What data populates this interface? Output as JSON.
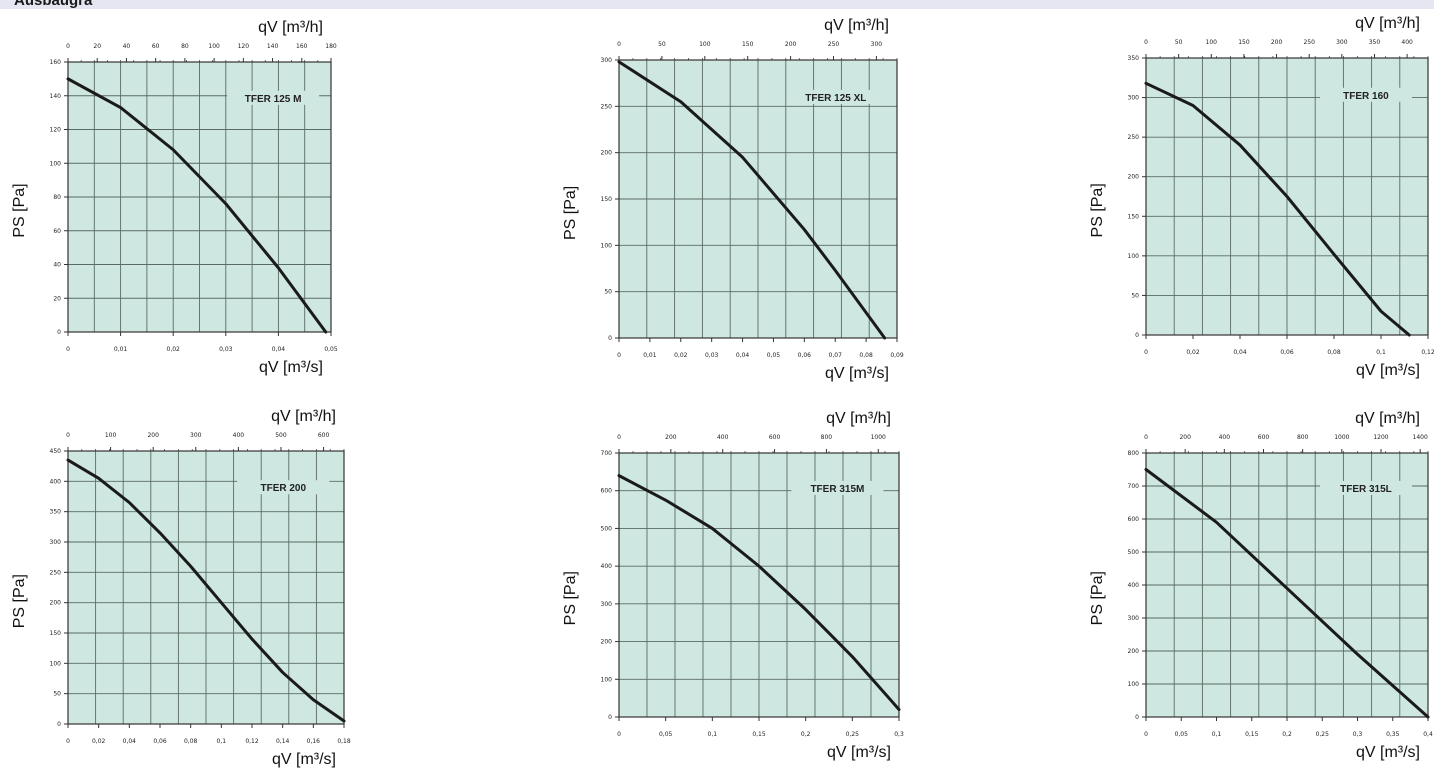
{
  "header": {
    "title": "Ausbaugra"
  },
  "chart_data": [
    {
      "type": "line",
      "title": "TFER 125 M",
      "xlabel": "qV [m³/s]",
      "x2label": "qV [m³/h]",
      "ylabel": "PS [Pa]",
      "xlim": [
        0,
        0.05
      ],
      "x2lim": [
        0,
        180
      ],
      "ylim": [
        0,
        160
      ],
      "xticks": [
        "0",
        "0,01",
        "0,02",
        "0,03",
        "0,04",
        "0,05"
      ],
      "x2ticks": [
        "0",
        "20",
        "40",
        "60",
        "80",
        "100",
        "120",
        "140",
        "160",
        "180"
      ],
      "yticks": [
        "0",
        "20",
        "40",
        "60",
        "80",
        "100",
        "120",
        "140",
        "160"
      ],
      "grid": true,
      "series": [
        {
          "x": [
            0,
            0.01,
            0.02,
            0.03,
            0.04,
            0.049
          ],
          "y": [
            150,
            133,
            108,
            76,
            38,
            0
          ]
        }
      ]
    },
    {
      "type": "line",
      "title": "TFER 125 XL",
      "xlabel": "qV [m³/s]",
      "x2label": "qV [m³/h]",
      "ylabel": "PS [Pa]",
      "xlim": [
        0,
        0.09
      ],
      "x2lim": [
        0,
        324
      ],
      "ylim": [
        0,
        300
      ],
      "xticks": [
        "0",
        "0,01",
        "0,02",
        "0,03",
        "0,04",
        "0,05",
        "0,06",
        "0,07",
        "0,08",
        "0,09"
      ],
      "x2ticks": [
        "0",
        "50",
        "100",
        "150",
        "200",
        "250",
        "300"
      ],
      "yticks": [
        "0",
        "50",
        "100",
        "150",
        "200",
        "250",
        "300"
      ],
      "grid": true,
      "series": [
        {
          "x": [
            0,
            0.02,
            0.04,
            0.06,
            0.07,
            0.086
          ],
          "y": [
            298,
            255,
            195,
            117,
            73,
            0
          ]
        }
      ]
    },
    {
      "type": "line",
      "title": "TFER 160",
      "xlabel": "qV [m³/s]",
      "x2label": "qV [m³/h]",
      "ylabel": "PS [Pa]",
      "xlim": [
        0,
        0.12
      ],
      "x2lim": [
        0,
        432
      ],
      "ylim": [
        0,
        350
      ],
      "xticks": [
        "0",
        "0,02",
        "0,04",
        "0,06",
        "0,08",
        "0,1",
        "0,12"
      ],
      "x2ticks": [
        "0",
        "50",
        "100",
        "150",
        "200",
        "250",
        "300",
        "350",
        "400"
      ],
      "yticks": [
        "0",
        "50",
        "100",
        "150",
        "200",
        "250",
        "300",
        "350"
      ],
      "grid": true,
      "series": [
        {
          "x": [
            0,
            0.02,
            0.04,
            0.06,
            0.08,
            0.1,
            0.112
          ],
          "y": [
            318,
            290,
            240,
            175,
            102,
            30,
            0
          ]
        }
      ]
    },
    {
      "type": "line",
      "title": "TFER 200",
      "xlabel": "qV [m³/s]",
      "x2label": "qV [m³/h]",
      "ylabel": "PS [Pa]",
      "xlim": [
        0,
        0.18
      ],
      "x2lim": [
        0,
        648
      ],
      "ylim": [
        0,
        450
      ],
      "xticks": [
        "0",
        "0,02",
        "0,04",
        "0,06",
        "0,08",
        "0,1",
        "0,12",
        "0,14",
        "0,16",
        "0,18"
      ],
      "x2ticks": [
        "0",
        "100",
        "200",
        "300",
        "400",
        "500",
        "600"
      ],
      "yticks": [
        "0",
        "50",
        "100",
        "150",
        "200",
        "250",
        "300",
        "350",
        "400",
        "450"
      ],
      "grid": true,
      "series": [
        {
          "x": [
            0,
            0.02,
            0.04,
            0.06,
            0.08,
            0.1,
            0.12,
            0.14,
            0.16,
            0.18
          ],
          "y": [
            435,
            405,
            365,
            315,
            260,
            200,
            140,
            85,
            40,
            5
          ]
        }
      ]
    },
    {
      "type": "line",
      "title": "TFER 315M",
      "xlabel": "qV [m³/s]",
      "x2label": "qV [m³/h]",
      "ylabel": "PS [Pa]",
      "xlim": [
        0,
        0.3
      ],
      "x2lim": [
        0,
        1080
      ],
      "ylim": [
        0,
        700
      ],
      "xticks": [
        "0",
        "0,05",
        "0,1",
        "0,15",
        "0,2",
        "0,25",
        "0,3"
      ],
      "x2ticks": [
        "0",
        "200",
        "400",
        "600",
        "800",
        "1000"
      ],
      "yticks": [
        "0",
        "100",
        "200",
        "300",
        "400",
        "500",
        "600",
        "700"
      ],
      "grid": true,
      "series": [
        {
          "x": [
            0,
            0.05,
            0.1,
            0.15,
            0.2,
            0.25,
            0.3
          ],
          "y": [
            640,
            575,
            500,
            400,
            285,
            160,
            20
          ]
        }
      ]
    },
    {
      "type": "line",
      "title": "TFER 315L",
      "xlabel": "qV [m³/s]",
      "x2label": "qV [m³/h]",
      "ylabel": "PS [Pa]",
      "xlim": [
        0,
        0.4
      ],
      "x2lim": [
        0,
        1440
      ],
      "ylim": [
        0,
        800
      ],
      "xticks": [
        "0",
        "0,05",
        "0,1",
        "0,15",
        "0,2",
        "0,25",
        "0,3",
        "0,35",
        "0,4"
      ],
      "x2ticks": [
        "0",
        "200",
        "400",
        "600",
        "800",
        "1000",
        "1200",
        "1400"
      ],
      "yticks": [
        "0",
        "100",
        "200",
        "300",
        "400",
        "500",
        "600",
        "700",
        "800"
      ],
      "grid": true,
      "series": [
        {
          "x": [
            0,
            0.1,
            0.2,
            0.3,
            0.4
          ],
          "y": [
            750,
            590,
            390,
            190,
            0
          ]
        }
      ]
    }
  ]
}
